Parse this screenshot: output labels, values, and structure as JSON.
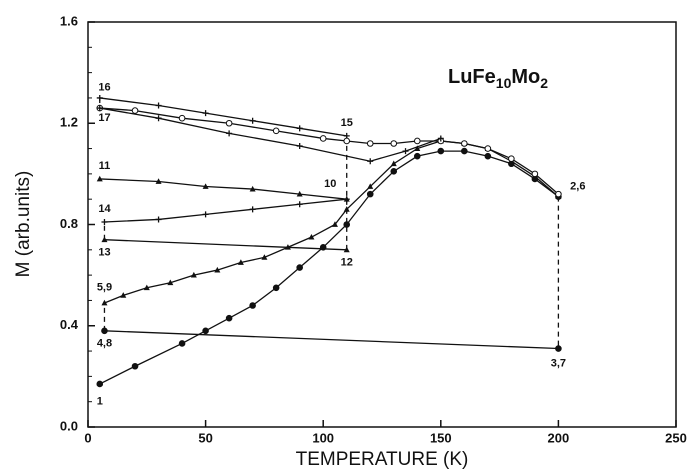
{
  "chart_data": {
    "type": "line",
    "xlabel": "TEMPERATURE  (K)",
    "ylabel": "M (arb.units)",
    "formula": [
      "LuFe",
      "10",
      "Mo",
      "2"
    ],
    "xlim": [
      0,
      250
    ],
    "xticks": [
      0,
      50,
      100,
      150,
      200,
      250
    ],
    "ylim": [
      0,
      1.6
    ],
    "yticks": [
      {
        "value": 0,
        "label": "0.0"
      },
      0.4,
      0.8,
      1.2,
      1.6
    ],
    "color": "#111111",
    "annotations": [
      "1",
      "2,6",
      "3,7",
      "4,8",
      "5,9",
      "10",
      "11",
      "12",
      "13",
      "14",
      "15",
      "16",
      "17"
    ],
    "series": [
      {
        "x": [
          5,
          20,
          40,
          50,
          60,
          70,
          80,
          90,
          100,
          110,
          120,
          130,
          140,
          150,
          160,
          170,
          180,
          190,
          200
        ],
        "values": [
          0.17,
          0.24,
          0.33,
          0.38,
          0.43,
          0.48,
          0.55,
          0.63,
          0.71,
          0.8,
          0.92,
          1.01,
          1.07,
          1.09,
          1.09,
          1.07,
          1.04,
          0.98,
          0.91
        ],
        "marker": "circle",
        "dashed": false
      },
      {
        "x": [
          200,
          200
        ],
        "values": [
          0.91,
          0.31
        ],
        "marker": "none",
        "dashed": true
      },
      {
        "x": [
          200,
          7
        ],
        "values": [
          0.31,
          0.38
        ],
        "marker": "circle",
        "dashed": false
      },
      {
        "x": [
          7,
          7
        ],
        "values": [
          0.38,
          0.49
        ],
        "marker": "none",
        "dashed": true
      },
      {
        "x": [
          7,
          15,
          25,
          35,
          45,
          55,
          65,
          75,
          85,
          95,
          105,
          110,
          120,
          130,
          140,
          150,
          160,
          170,
          180,
          190,
          200
        ],
        "values": [
          0.49,
          0.52,
          0.55,
          0.57,
          0.6,
          0.62,
          0.65,
          0.67,
          0.71,
          0.75,
          0.8,
          0.86,
          0.95,
          1.04,
          1.1,
          1.13,
          1.12,
          1.1,
          1.05,
          0.99,
          0.91
        ],
        "marker": "triangle",
        "dashed": false
      },
      {
        "x": [
          110,
          90,
          70,
          50,
          30,
          5
        ],
        "values": [
          0.9,
          0.92,
          0.94,
          0.95,
          0.97,
          0.98
        ],
        "marker": "triangle",
        "dashed": false
      },
      {
        "x": [
          110,
          110
        ],
        "values": [
          0.7,
          1.15
        ],
        "marker": "none",
        "dashed": true
      },
      {
        "x": [
          110,
          7
        ],
        "values": [
          0.7,
          0.74
        ],
        "marker": "triangle",
        "dashed": false
      },
      {
        "x": [
          7,
          7
        ],
        "values": [
          0.74,
          0.81
        ],
        "marker": "none",
        "dashed": true
      },
      {
        "x": [
          7,
          30,
          50,
          70,
          90,
          110
        ],
        "values": [
          0.81,
          0.82,
          0.84,
          0.86,
          0.88,
          0.9
        ],
        "marker": "plus",
        "dashed": false
      },
      {
        "x": [
          110,
          90,
          70,
          50,
          30,
          5
        ],
        "values": [
          1.15,
          1.18,
          1.21,
          1.24,
          1.27,
          1.3
        ],
        "marker": "plus",
        "dashed": false
      },
      {
        "x": [
          5,
          5
        ],
        "values": [
          1.3,
          1.26
        ],
        "marker": "none",
        "dashed": true
      },
      {
        "x": [
          5,
          20,
          40,
          60,
          80,
          100,
          110,
          120,
          130,
          140,
          150,
          160,
          170,
          180,
          190,
          200
        ],
        "values": [
          1.26,
          1.25,
          1.22,
          1.2,
          1.17,
          1.14,
          1.13,
          1.12,
          1.12,
          1.13,
          1.13,
          1.12,
          1.1,
          1.06,
          1.0,
          0.92
        ],
        "marker": "open",
        "dashed": false
      },
      {
        "x": [
          5,
          30,
          60,
          90,
          120,
          135,
          150
        ],
        "values": [
          1.26,
          1.22,
          1.16,
          1.11,
          1.05,
          1.09,
          1.14
        ],
        "marker": "plus",
        "dashed": false
      }
    ]
  }
}
